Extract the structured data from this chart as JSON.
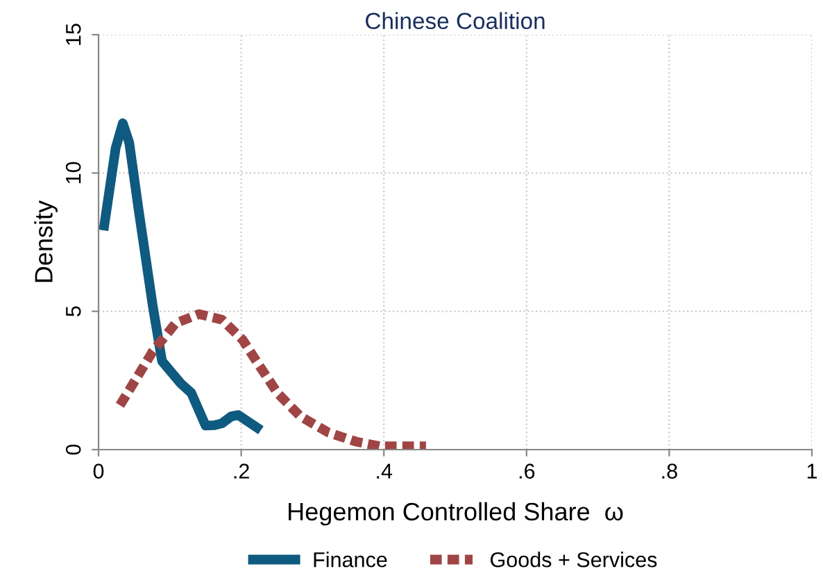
{
  "chart_data": {
    "type": "line",
    "title": "Chinese Coalition",
    "xlabel": "Hegemon Controlled Share  ω",
    "ylabel": "Density",
    "xlim": [
      0,
      1
    ],
    "ylim": [
      0,
      15
    ],
    "xticks": [
      0,
      {
        "value": 0.2,
        "label": ".2"
      },
      {
        "value": 0.4,
        "label": ".4"
      },
      {
        "value": 0.6,
        "label": ".6"
      },
      {
        "value": 0.8,
        "label": ".8"
      },
      1
    ],
    "yticks": [
      0,
      5,
      10,
      15
    ],
    "grid": true,
    "legend": "bottom",
    "series": [
      {
        "name": "Finance",
        "color": "#0f5a80",
        "line_style": "solid",
        "x": [
          0.008,
          0.024,
          0.034,
          0.043,
          0.056,
          0.076,
          0.089,
          0.115,
          0.13,
          0.15,
          0.162,
          0.173,
          0.186,
          0.196,
          0.222
        ],
        "values": [
          8.1,
          10.9,
          11.8,
          11.1,
          8.7,
          5.2,
          3.2,
          2.4,
          2.05,
          0.87,
          0.88,
          0.95,
          1.2,
          1.25,
          0.8
        ]
      },
      {
        "name": "Goods + Services",
        "color": "#a04545",
        "line_style": "dashed",
        "x": [
          0.03,
          0.076,
          0.108,
          0.141,
          0.173,
          0.202,
          0.225,
          0.251,
          0.283,
          0.322,
          0.361,
          0.394,
          0.459
        ],
        "values": [
          1.6,
          3.55,
          4.57,
          4.9,
          4.7,
          3.97,
          3.05,
          2.04,
          1.2,
          0.62,
          0.29,
          0.12,
          0.12
        ]
      }
    ]
  }
}
